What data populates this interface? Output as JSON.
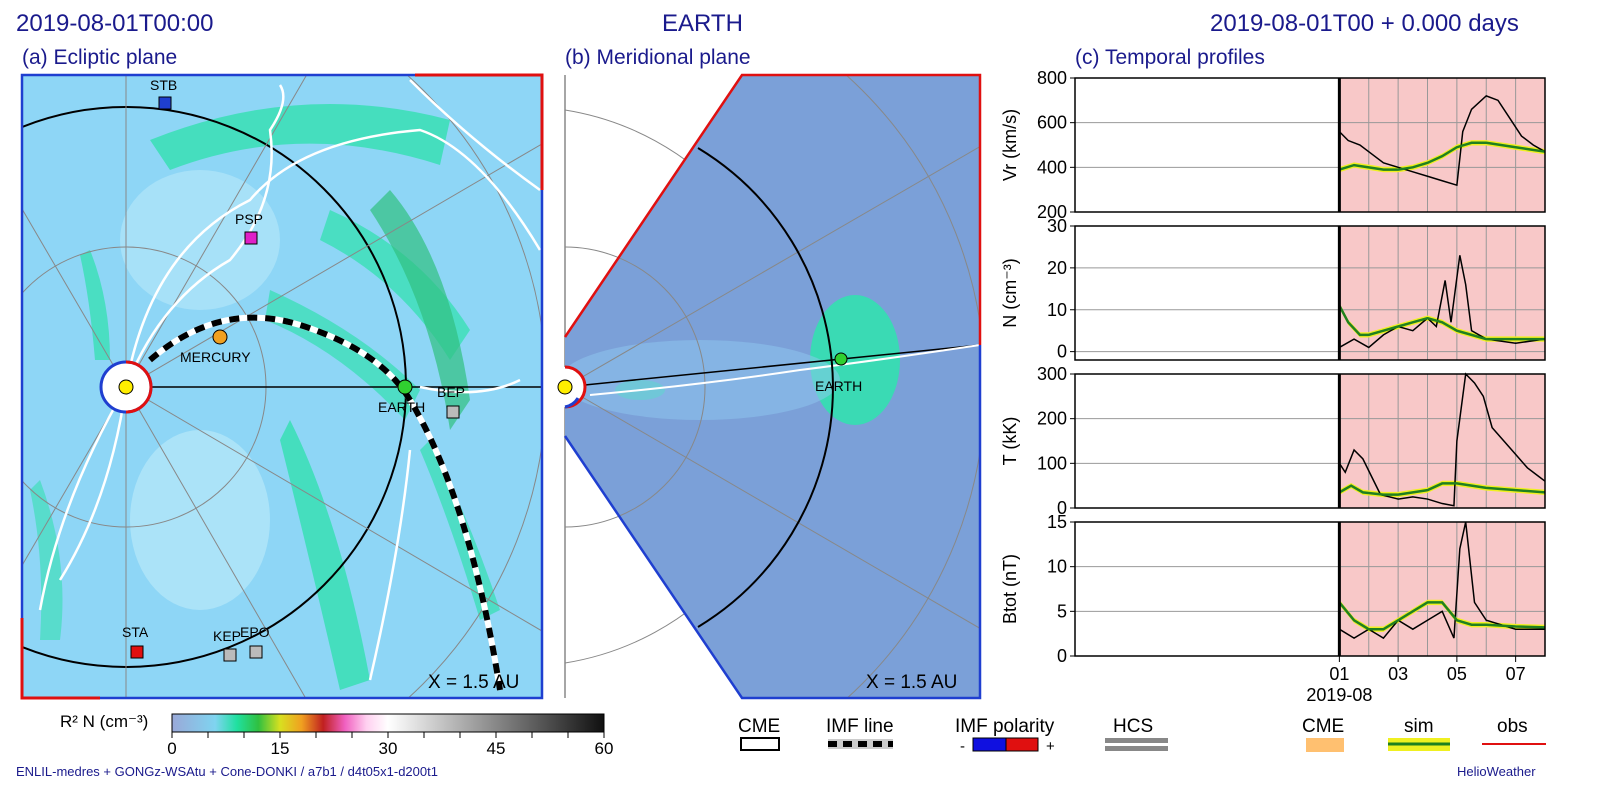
{
  "header": {
    "left_time": "2019-08-01T00:00",
    "center_title": "EARTH",
    "right_time": "2019-08-01T00 +  0.000 days"
  },
  "panels": {
    "a_title": "(a) Ecliptic plane",
    "b_title": "(b) Meridional plane",
    "c_title": "(c) Temporal profiles"
  },
  "ecliptic": {
    "scale_label": "X = 1.5  AU",
    "bodies": [
      {
        "name": "STB",
        "color": "#1f3fd0"
      },
      {
        "name": "PSP",
        "color": "#e020c8"
      },
      {
        "name": "MERCURY",
        "color": "#f0a020"
      },
      {
        "name": "EARTH",
        "color": "#30d030"
      },
      {
        "name": "BEP",
        "color": "#bbbbbb"
      },
      {
        "name": "STA",
        "color": "#e01010"
      },
      {
        "name": "KEP",
        "color": "#bbbbbb"
      },
      {
        "name": "EPO",
        "color": "#bbbbbb"
      }
    ]
  },
  "meridional": {
    "scale_label": "X = 1.5 AU",
    "earth_label": "EARTH"
  },
  "colorbar": {
    "label": "R² N (cm⁻³)",
    "ticks": [
      "0",
      "15",
      "30",
      "45",
      "60"
    ]
  },
  "legend": {
    "cme": "CME",
    "imf_line": "IMF line",
    "imf_polarity": "IMF polarity",
    "minus": "-",
    "plus": "+",
    "hcs": "HCS",
    "cme2": "CME",
    "sim": "sim",
    "obs": "obs"
  },
  "footer": {
    "left": "ENLIL-medres + GONGz-WSAtu + Cone-DONKI / a7b1 / d4t05x1-d200t1",
    "right": "HelioWeather"
  },
  "chart_data": {
    "type": "line",
    "x_tick_labels": [
      "01",
      "03",
      "05",
      "07"
    ],
    "x_tick_days": [
      1,
      3,
      5,
      7
    ],
    "x_sublabel": "2019-08",
    "xlim_days": [
      -8,
      8
    ],
    "panels": [
      {
        "ylabel": "Vr (km/s)",
        "ylim": [
          200,
          800
        ],
        "yticks": [
          "200",
          "400",
          "600",
          "800"
        ],
        "ytick_vals": [
          200,
          400,
          600,
          800
        ],
        "obs": [
          [
            1.0,
            560
          ],
          [
            1.3,
            520
          ],
          [
            1.7,
            500
          ],
          [
            2.1,
            460
          ],
          [
            2.5,
            420
          ],
          [
            3.0,
            400
          ],
          [
            3.5,
            380
          ],
          [
            4.0,
            360
          ],
          [
            4.5,
            340
          ],
          [
            5.0,
            320
          ],
          [
            5.2,
            560
          ],
          [
            5.5,
            660
          ],
          [
            6.0,
            720
          ],
          [
            6.4,
            700
          ],
          [
            6.8,
            620
          ],
          [
            7.2,
            540
          ],
          [
            7.6,
            500
          ],
          [
            8.0,
            470
          ]
        ],
        "sim": [
          [
            1.0,
            390
          ],
          [
            1.5,
            410
          ],
          [
            2.0,
            400
          ],
          [
            2.5,
            390
          ],
          [
            3.0,
            390
          ],
          [
            3.5,
            400
          ],
          [
            4.0,
            420
          ],
          [
            4.5,
            450
          ],
          [
            5.0,
            490
          ],
          [
            5.5,
            510
          ],
          [
            6.0,
            510
          ],
          [
            6.5,
            500
          ],
          [
            7.0,
            490
          ],
          [
            7.5,
            480
          ],
          [
            8.0,
            470
          ]
        ]
      },
      {
        "ylabel": "N (cm⁻³)",
        "ylim": [
          -2,
          30
        ],
        "yticks": [
          "0",
          "10",
          "20",
          "30"
        ],
        "ytick_vals": [
          0,
          10,
          20,
          30
        ],
        "obs": [
          [
            1.0,
            1
          ],
          [
            1.5,
            3
          ],
          [
            2.0,
            1
          ],
          [
            2.5,
            4
          ],
          [
            3.0,
            6
          ],
          [
            3.5,
            5
          ],
          [
            4.0,
            8
          ],
          [
            4.3,
            6
          ],
          [
            4.6,
            17
          ],
          [
            4.8,
            7
          ],
          [
            5.1,
            23
          ],
          [
            5.3,
            16
          ],
          [
            5.5,
            5
          ],
          [
            6.0,
            3
          ],
          [
            7.0,
            2
          ],
          [
            8.0,
            3
          ]
        ],
        "sim": [
          [
            1.0,
            11
          ],
          [
            1.3,
            7
          ],
          [
            1.7,
            4
          ],
          [
            2.0,
            4
          ],
          [
            2.5,
            5
          ],
          [
            3.0,
            6
          ],
          [
            3.5,
            7
          ],
          [
            4.0,
            8
          ],
          [
            4.5,
            7
          ],
          [
            5.0,
            5
          ],
          [
            5.5,
            4
          ],
          [
            6.0,
            3
          ],
          [
            7.0,
            3
          ],
          [
            8.0,
            3
          ]
        ]
      },
      {
        "ylabel": "T (kK)",
        "ylim": [
          0,
          300
        ],
        "yticks": [
          "0",
          "100",
          "200",
          "300"
        ],
        "ytick_vals": [
          0,
          100,
          200,
          300
        ],
        "obs": [
          [
            1.0,
            100
          ],
          [
            1.2,
            80
          ],
          [
            1.5,
            130
          ],
          [
            1.8,
            110
          ],
          [
            2.1,
            70
          ],
          [
            2.4,
            30
          ],
          [
            3.0,
            20
          ],
          [
            3.5,
            25
          ],
          [
            4.0,
            20
          ],
          [
            4.5,
            10
          ],
          [
            4.9,
            5
          ],
          [
            5.0,
            150
          ],
          [
            5.3,
            300
          ],
          [
            5.6,
            280
          ],
          [
            5.9,
            250
          ],
          [
            6.2,
            180
          ],
          [
            6.6,
            150
          ],
          [
            7.0,
            120
          ],
          [
            7.4,
            90
          ],
          [
            7.8,
            70
          ],
          [
            8.0,
            60
          ]
        ],
        "sim": [
          [
            1.0,
            35
          ],
          [
            1.4,
            50
          ],
          [
            1.8,
            35
          ],
          [
            2.5,
            30
          ],
          [
            3.0,
            30
          ],
          [
            3.5,
            35
          ],
          [
            4.0,
            40
          ],
          [
            4.5,
            55
          ],
          [
            5.0,
            55
          ],
          [
            5.5,
            50
          ],
          [
            6.0,
            45
          ],
          [
            7.0,
            40
          ],
          [
            8.0,
            35
          ]
        ]
      },
      {
        "ylabel": "Btot (nT)",
        "ylim": [
          0,
          15
        ],
        "yticks": [
          "0",
          "5",
          "10",
          "15"
        ],
        "ytick_vals": [
          0,
          5,
          10,
          15
        ],
        "obs": [
          [
            1.0,
            3
          ],
          [
            1.5,
            2
          ],
          [
            2.0,
            3
          ],
          [
            2.5,
            2
          ],
          [
            3.0,
            4
          ],
          [
            3.5,
            3
          ],
          [
            4.0,
            4
          ],
          [
            4.5,
            5
          ],
          [
            4.9,
            2
          ],
          [
            5.1,
            12
          ],
          [
            5.3,
            15
          ],
          [
            5.6,
            6
          ],
          [
            6.0,
            4
          ],
          [
            7.0,
            3
          ],
          [
            8.0,
            3
          ]
        ],
        "sim": [
          [
            1.0,
            6
          ],
          [
            1.5,
            4
          ],
          [
            2.0,
            3
          ],
          [
            2.5,
            3
          ],
          [
            3.0,
            4
          ],
          [
            3.5,
            5
          ],
          [
            4.0,
            6
          ],
          [
            4.5,
            6
          ],
          [
            5.0,
            4
          ],
          [
            5.5,
            3.5
          ],
          [
            6.0,
            3.5
          ],
          [
            7.0,
            3.3
          ],
          [
            8.0,
            3.2
          ]
        ]
      }
    ]
  }
}
